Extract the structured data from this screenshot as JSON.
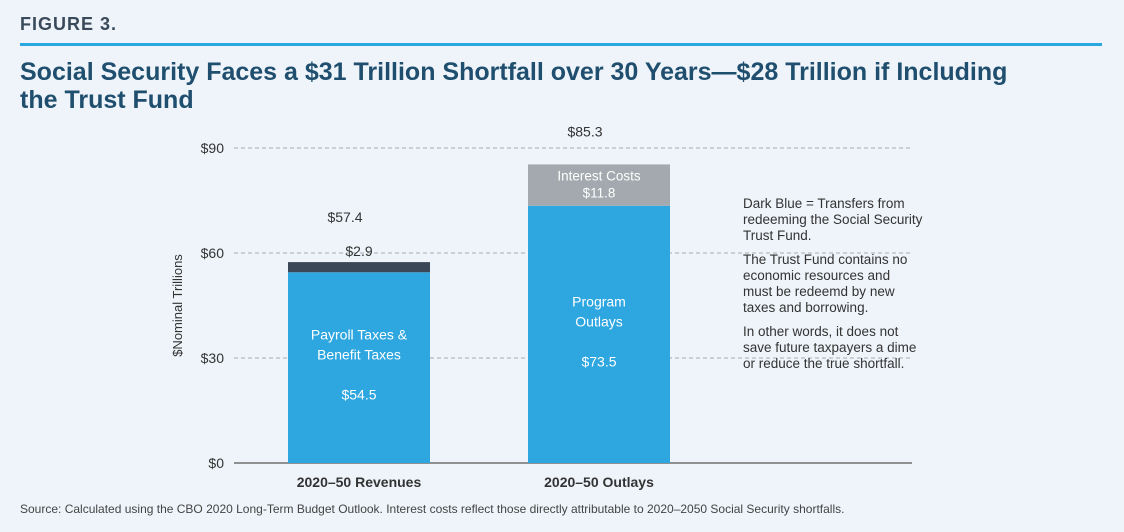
{
  "figure_label": "FIGURE 3.",
  "colors": {
    "accent": "#29a8e0",
    "bar_main": "#2ea6e0",
    "bar_dark": "#3b4756",
    "bar_gray": "#a3a9ae",
    "title": "#1f4e6e"
  },
  "chart_data": {
    "type": "bar",
    "stacked": true,
    "title": "Social Security Faces a $31 Trillion Shortfall over 30 Years—$28 Trillion if Including the Trust Fund",
    "ylabel": "$Nominal Trillions",
    "xlabel": "",
    "ylim": [
      0,
      90
    ],
    "yticks": [
      0,
      30,
      60,
      90
    ],
    "ytick_labels": [
      "$0",
      "$30",
      "$60",
      "$90"
    ],
    "grid": true,
    "categories": [
      "2020–50 Revenues",
      "2020–50 Outlays"
    ],
    "totals": [
      57.4,
      85.3
    ],
    "total_labels": [
      "$57.4",
      "$85.3"
    ],
    "segments": [
      {
        "category": 0,
        "base": 0,
        "value": 54.5,
        "color": "bar_main",
        "name_lines": [
          "Payroll Taxes &",
          "Benefit Taxes"
        ],
        "value_label": "$54.5",
        "label_style": "inside-white"
      },
      {
        "category": 0,
        "base": 54.5,
        "value": 2.9,
        "color": "bar_dark",
        "name_lines": [],
        "value_label": "$2.9",
        "label_style": "above-dark"
      },
      {
        "category": 1,
        "base": 0,
        "value": 73.5,
        "color": "bar_main",
        "name_lines": [
          "Program",
          "Outlays"
        ],
        "value_label": "$73.5",
        "label_style": "inside-white"
      },
      {
        "category": 1,
        "base": 73.5,
        "value": 11.8,
        "color": "bar_gray",
        "name_lines": [
          "Interest Costs"
        ],
        "value_label": "$11.8",
        "label_style": "inside-white-small"
      }
    ]
  },
  "notes": [
    "Dark Blue = Transfers from redeeming the Social Security Trust Fund.",
    "The Trust Fund contains no economic resources and must be redeemd by new taxes and borrowing.",
    "In other words, it does not save future taxpayers a dime or reduce the true shortfall."
  ],
  "source": "Source: Calculated using the CBO 2020 Long-Term Budget Outlook. Interest costs reflect those directly attributable to 2020–2050 Social Security shortfalls."
}
